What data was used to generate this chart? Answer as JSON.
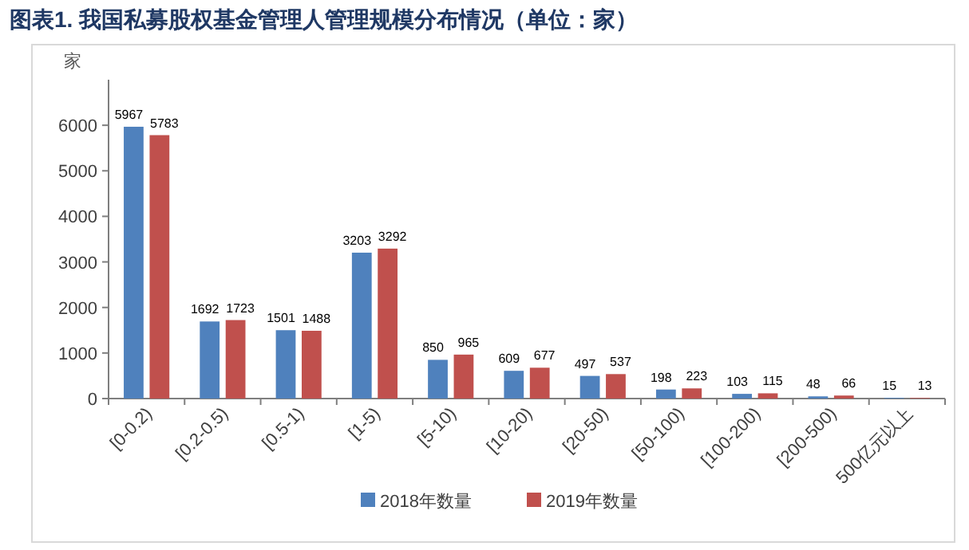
{
  "chart_data": {
    "type": "bar",
    "title": "图表1.   我国私募股权基金管理人管理规模分布情况（单位：家）",
    "ylabel": "家",
    "categories": [
      "[0-0.2)",
      "[0.2-0.5)",
      "[0.5-1)",
      "[1-5)",
      "[5-10)",
      "[10-20)",
      "[20-50)",
      "[50-100)",
      "[100-200)",
      "[200-500)",
      "500亿元以上"
    ],
    "series": [
      {
        "name": "2018年数量",
        "color": "#4f81bd",
        "values": [
          5967,
          1692,
          1501,
          3203,
          850,
          609,
          497,
          198,
          103,
          48,
          15
        ]
      },
      {
        "name": "2019年数量",
        "color": "#c0504d",
        "values": [
          5783,
          1723,
          1488,
          3292,
          965,
          677,
          537,
          223,
          115,
          66,
          13
        ]
      }
    ],
    "ylim": [
      0,
      7000
    ],
    "yticks": [
      0,
      1000,
      2000,
      3000,
      4000,
      5000,
      6000
    ],
    "grid": false,
    "legend": "bottom",
    "data_labels": true
  }
}
